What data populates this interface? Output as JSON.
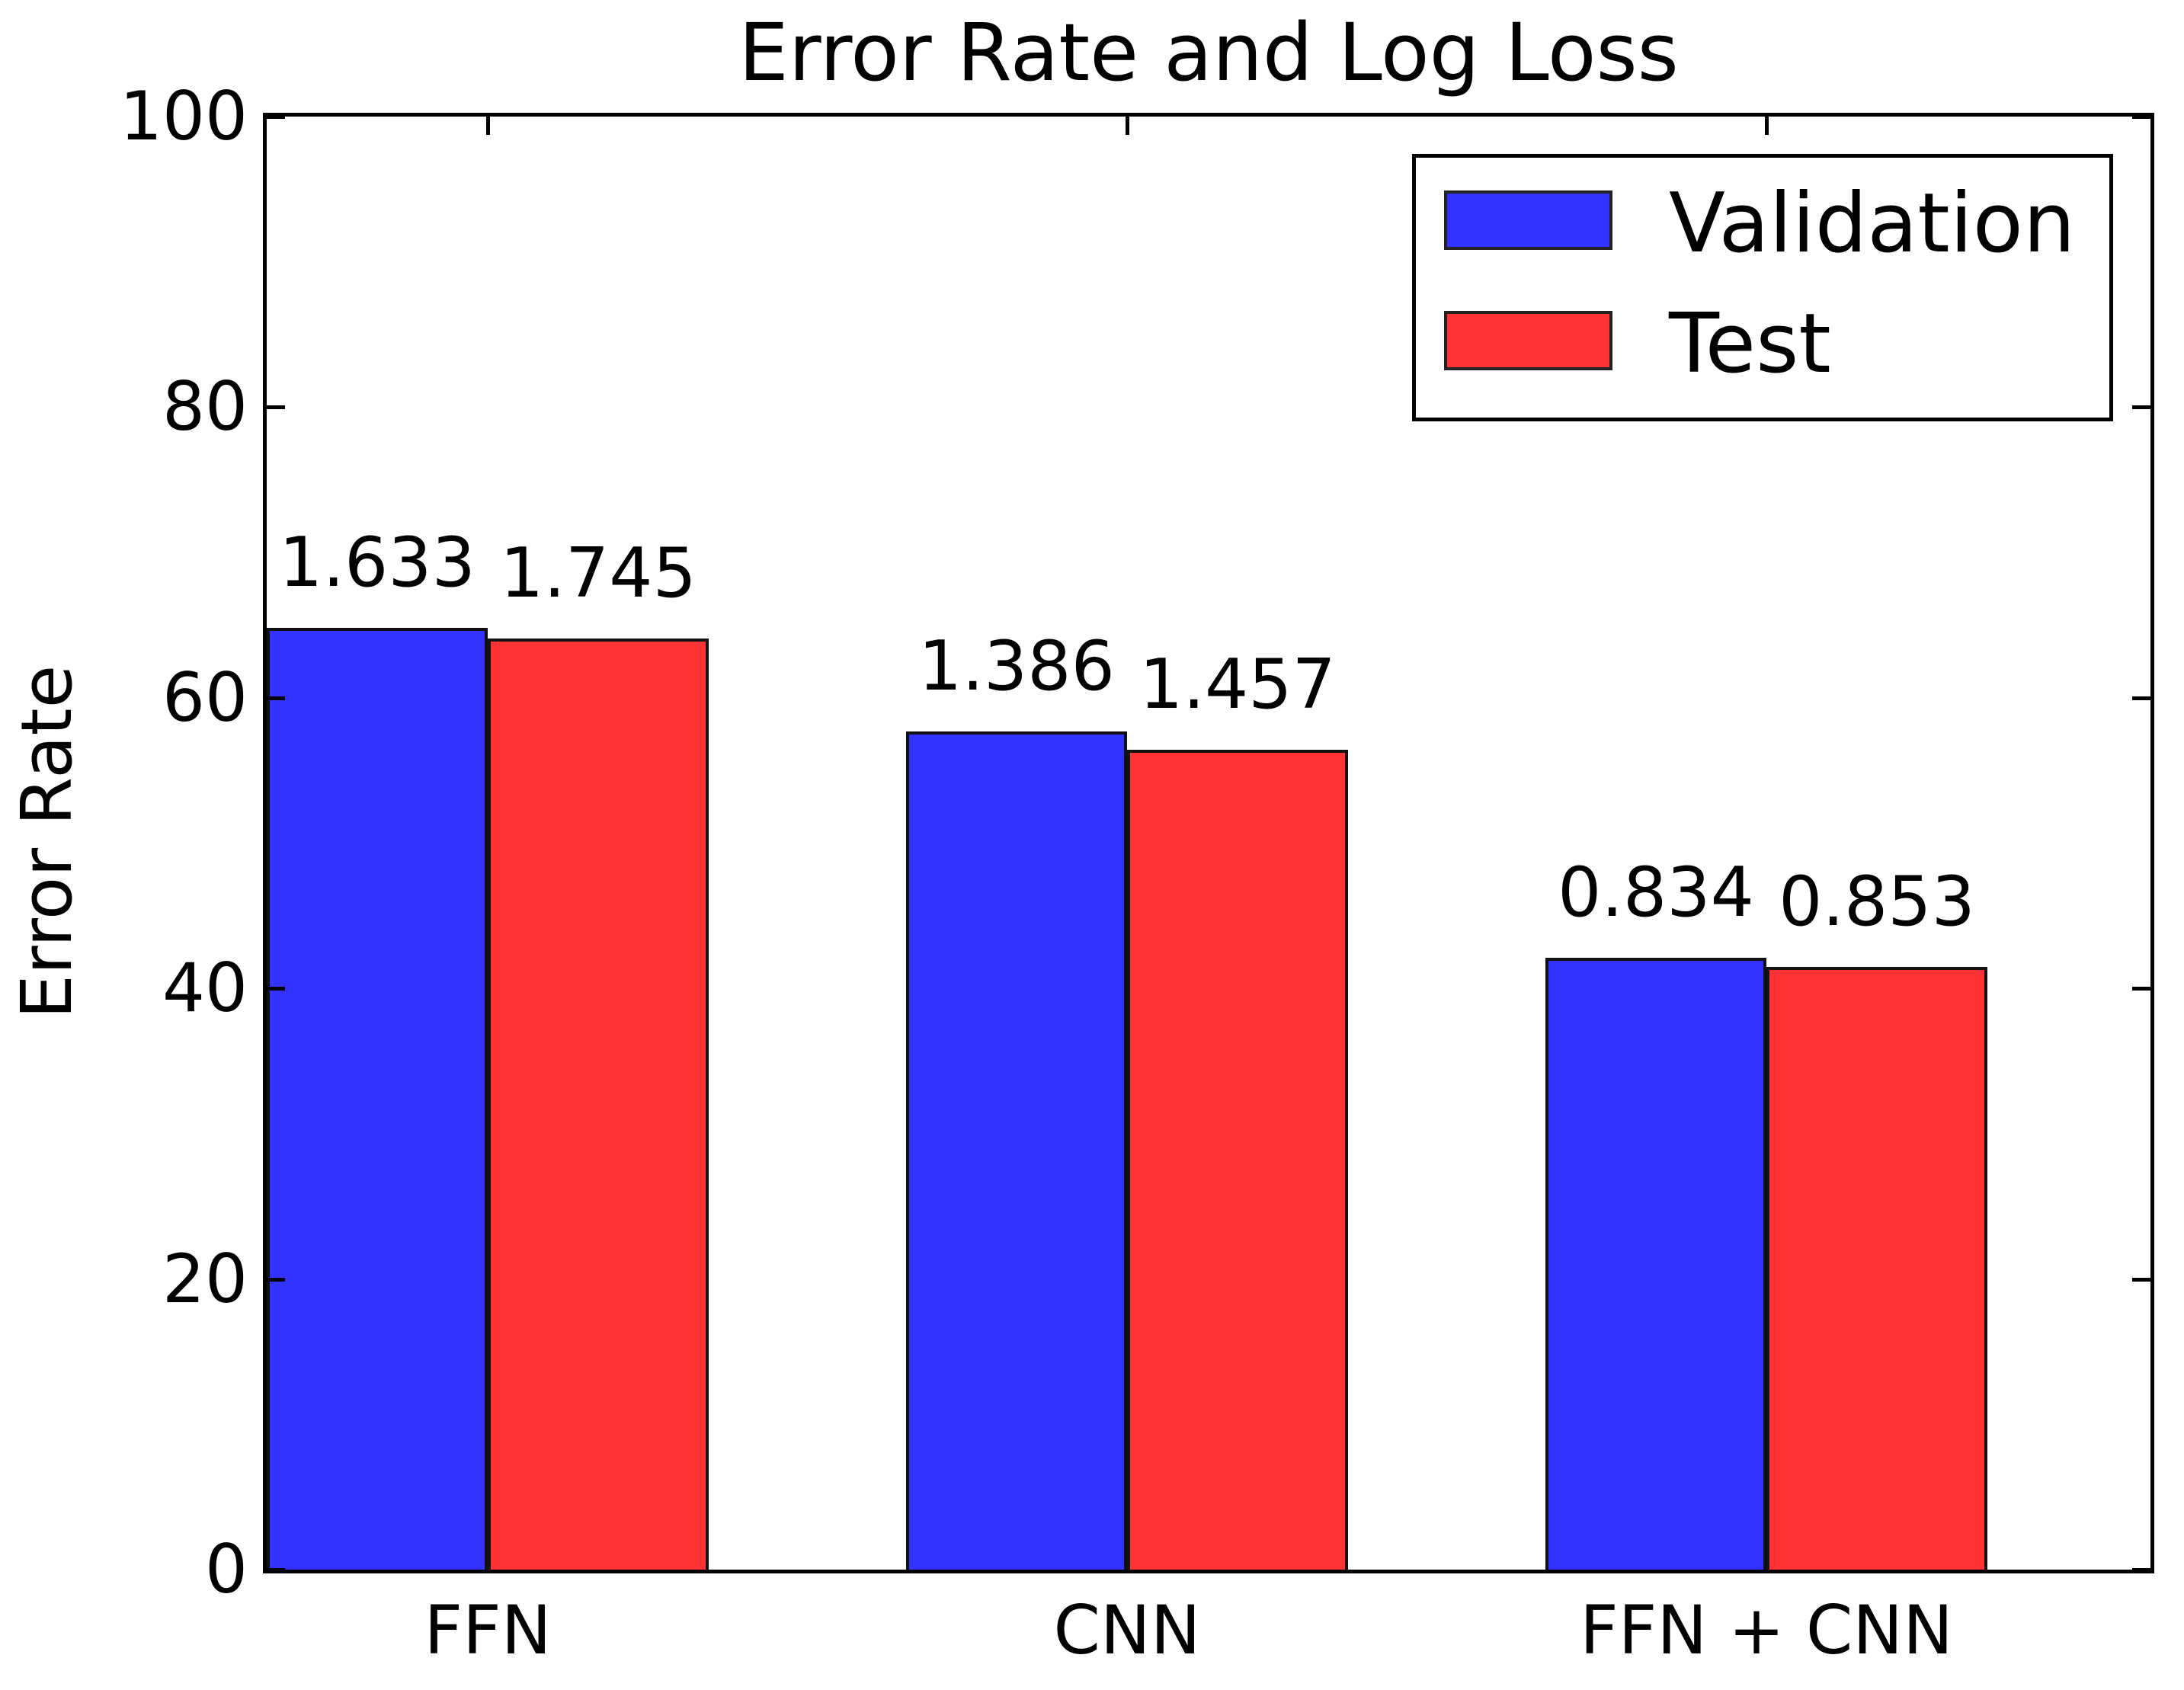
{
  "chart_data": {
    "type": "bar",
    "title": "Error Rate and Log Loss",
    "xlabel": "",
    "ylabel": "Error Rate",
    "categories": [
      "FFN",
      "CNN",
      "FFN + CNN"
    ],
    "series": [
      {
        "name": "Validation",
        "color": "#3333ff",
        "values": [
          64.8,
          57.7,
          42.1
        ],
        "bar_labels": [
          "1.633",
          "1.386",
          "0.834"
        ]
      },
      {
        "name": "Test",
        "color": "#ff3333",
        "values": [
          64.1,
          56.4,
          41.5
        ],
        "bar_labels": [
          "1.745",
          "1.457",
          "0.853"
        ]
      }
    ],
    "ylim": [
      0,
      100
    ],
    "yticks": [
      0,
      20,
      40,
      60,
      80,
      100
    ],
    "grid": "off",
    "legend_position": "upper right",
    "bar_edge_color": "#000000",
    "background_color": "#ffffff"
  }
}
